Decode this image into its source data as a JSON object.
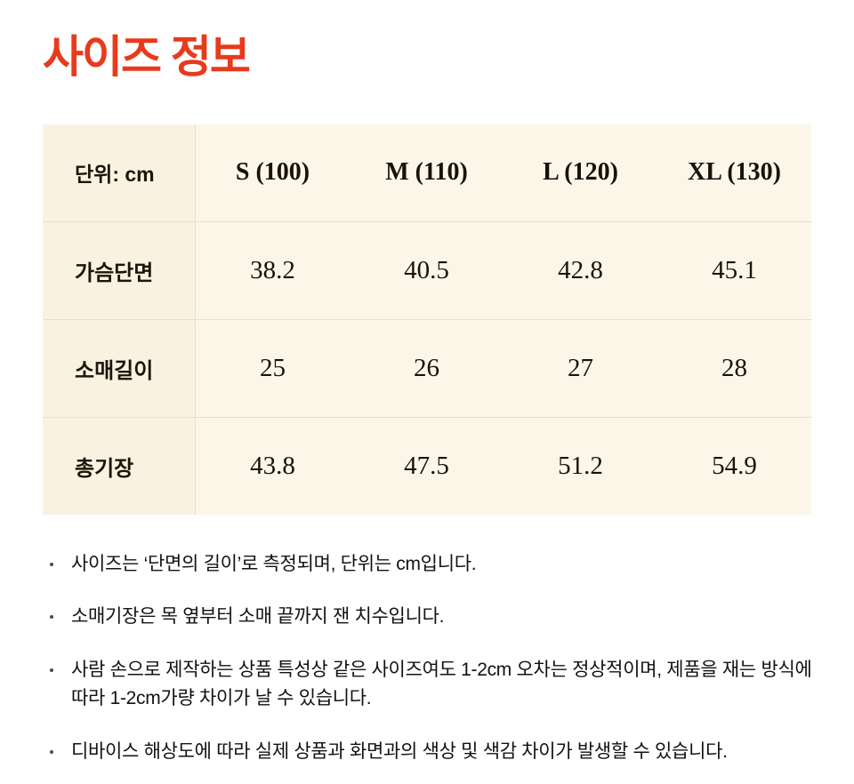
{
  "page": {
    "title": "사이즈 정보"
  },
  "size_table": {
    "unit_label": "단위: cm",
    "columns": [
      "S (100)",
      "M (110)",
      "L (120)",
      "XL (130)"
    ],
    "rows": [
      {
        "label": "가슴단면",
        "values": [
          "38.2",
          "40.5",
          "42.8",
          "45.1"
        ]
      },
      {
        "label": "소매길이",
        "values": [
          "25",
          "26",
          "27",
          "28"
        ]
      },
      {
        "label": "총기장",
        "values": [
          "43.8",
          "47.5",
          "51.2",
          "54.9"
        ]
      }
    ]
  },
  "notes": [
    "사이즈는 ‘단면의 길이’로 측정되며, 단위는 cm입니다.",
    "소매기장은 목 옆부터 소매 끝까지 잰 치수입니다.",
    "사람 손으로 제작하는 상품 특성상 같은 사이즈여도 1-2cm 오차는 정상적이며, 제품을 재는 방식에 따라 1-2cm가량 차이가 날 수 있습니다.",
    "디바이스 해상도에 따라 실제 상품과 화면과의 색상 및 색감 차이가 발생할 수 있습니다."
  ],
  "colors": {
    "title": "#e83a1c",
    "table_background": "#fcf6e9",
    "label_column_background": "#faf2e0",
    "divider": "#eadfc6",
    "text": "#17130a"
  }
}
